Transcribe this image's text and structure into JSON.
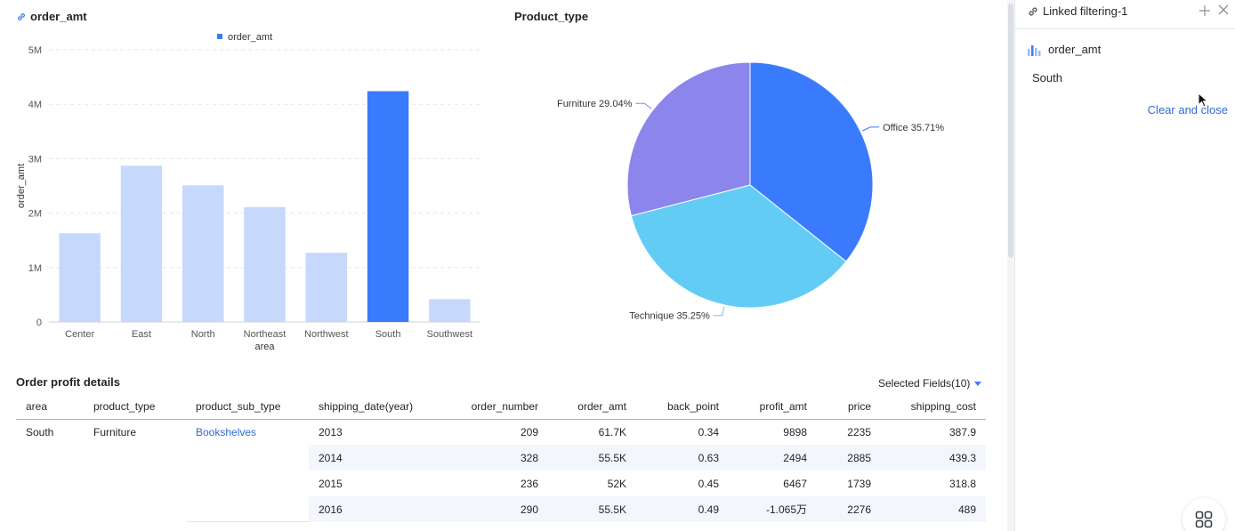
{
  "bar_card": {
    "title": "order_amt",
    "legend_label": "order_amt"
  },
  "pie_card": {
    "title": "Product_type"
  },
  "chart_data": [
    {
      "type": "bar",
      "title": "order_amt",
      "xlabel": "area",
      "ylabel": "order_amt",
      "legend": [
        "order_amt"
      ],
      "categories": [
        "Center",
        "East",
        "North",
        "Northeast",
        "Northwest",
        "South",
        "Southwest"
      ],
      "values": [
        1630000,
        2870000,
        2510000,
        2110000,
        1270000,
        4240000,
        420000
      ],
      "highlighted": "South",
      "ylim": [
        0,
        5000000
      ],
      "yticks": [
        0,
        1000000,
        2000000,
        3000000,
        4000000,
        5000000
      ],
      "ytick_labels": [
        "0",
        "1M",
        "2M",
        "3M",
        "4M",
        "5M"
      ],
      "colors": {
        "highlight": "#3a7bfd",
        "dim": "#c6d8fc"
      }
    },
    {
      "type": "pie",
      "title": "Product_type",
      "slices": [
        {
          "label": "Office",
          "value": 35.71,
          "text": "Office 35.71%",
          "color": "#3a7bfd"
        },
        {
          "label": "Technique",
          "value": 35.25,
          "text": "Technique 35.25%",
          "color": "#63ccf5"
        },
        {
          "label": "Furniture",
          "value": 29.04,
          "text": "Furniture 29.04%",
          "color": "#8c85ec"
        }
      ]
    }
  ],
  "table": {
    "title": "Order profit details",
    "selected_fields": "Selected Fields(10)",
    "columns": [
      "area",
      "product_type",
      "product_sub_type",
      "shipping_date(year)",
      "order_number",
      "order_amt",
      "back_point",
      "profit_amt",
      "price",
      "shipping_cost"
    ],
    "rows": [
      [
        "South",
        "Furniture",
        "Bookshelves",
        "2013",
        "209",
        "61.7K",
        "0.34",
        "9898",
        "2235",
        "387.9"
      ],
      [
        "",
        "",
        "",
        "2014",
        "328",
        "55.5K",
        "0.63",
        "2494",
        "2885",
        "439.3"
      ],
      [
        "",
        "",
        "",
        "2015",
        "236",
        "52K",
        "0.45",
        "6467",
        "1739",
        "318.8"
      ],
      [
        "",
        "",
        "",
        "2016",
        "290",
        "55.5K",
        "0.49",
        "-1.065万",
        "2276",
        "489"
      ]
    ]
  },
  "panel": {
    "title": "Linked filtering-1",
    "field": "order_amt",
    "value": "South",
    "clear_label": "Clear and close"
  }
}
